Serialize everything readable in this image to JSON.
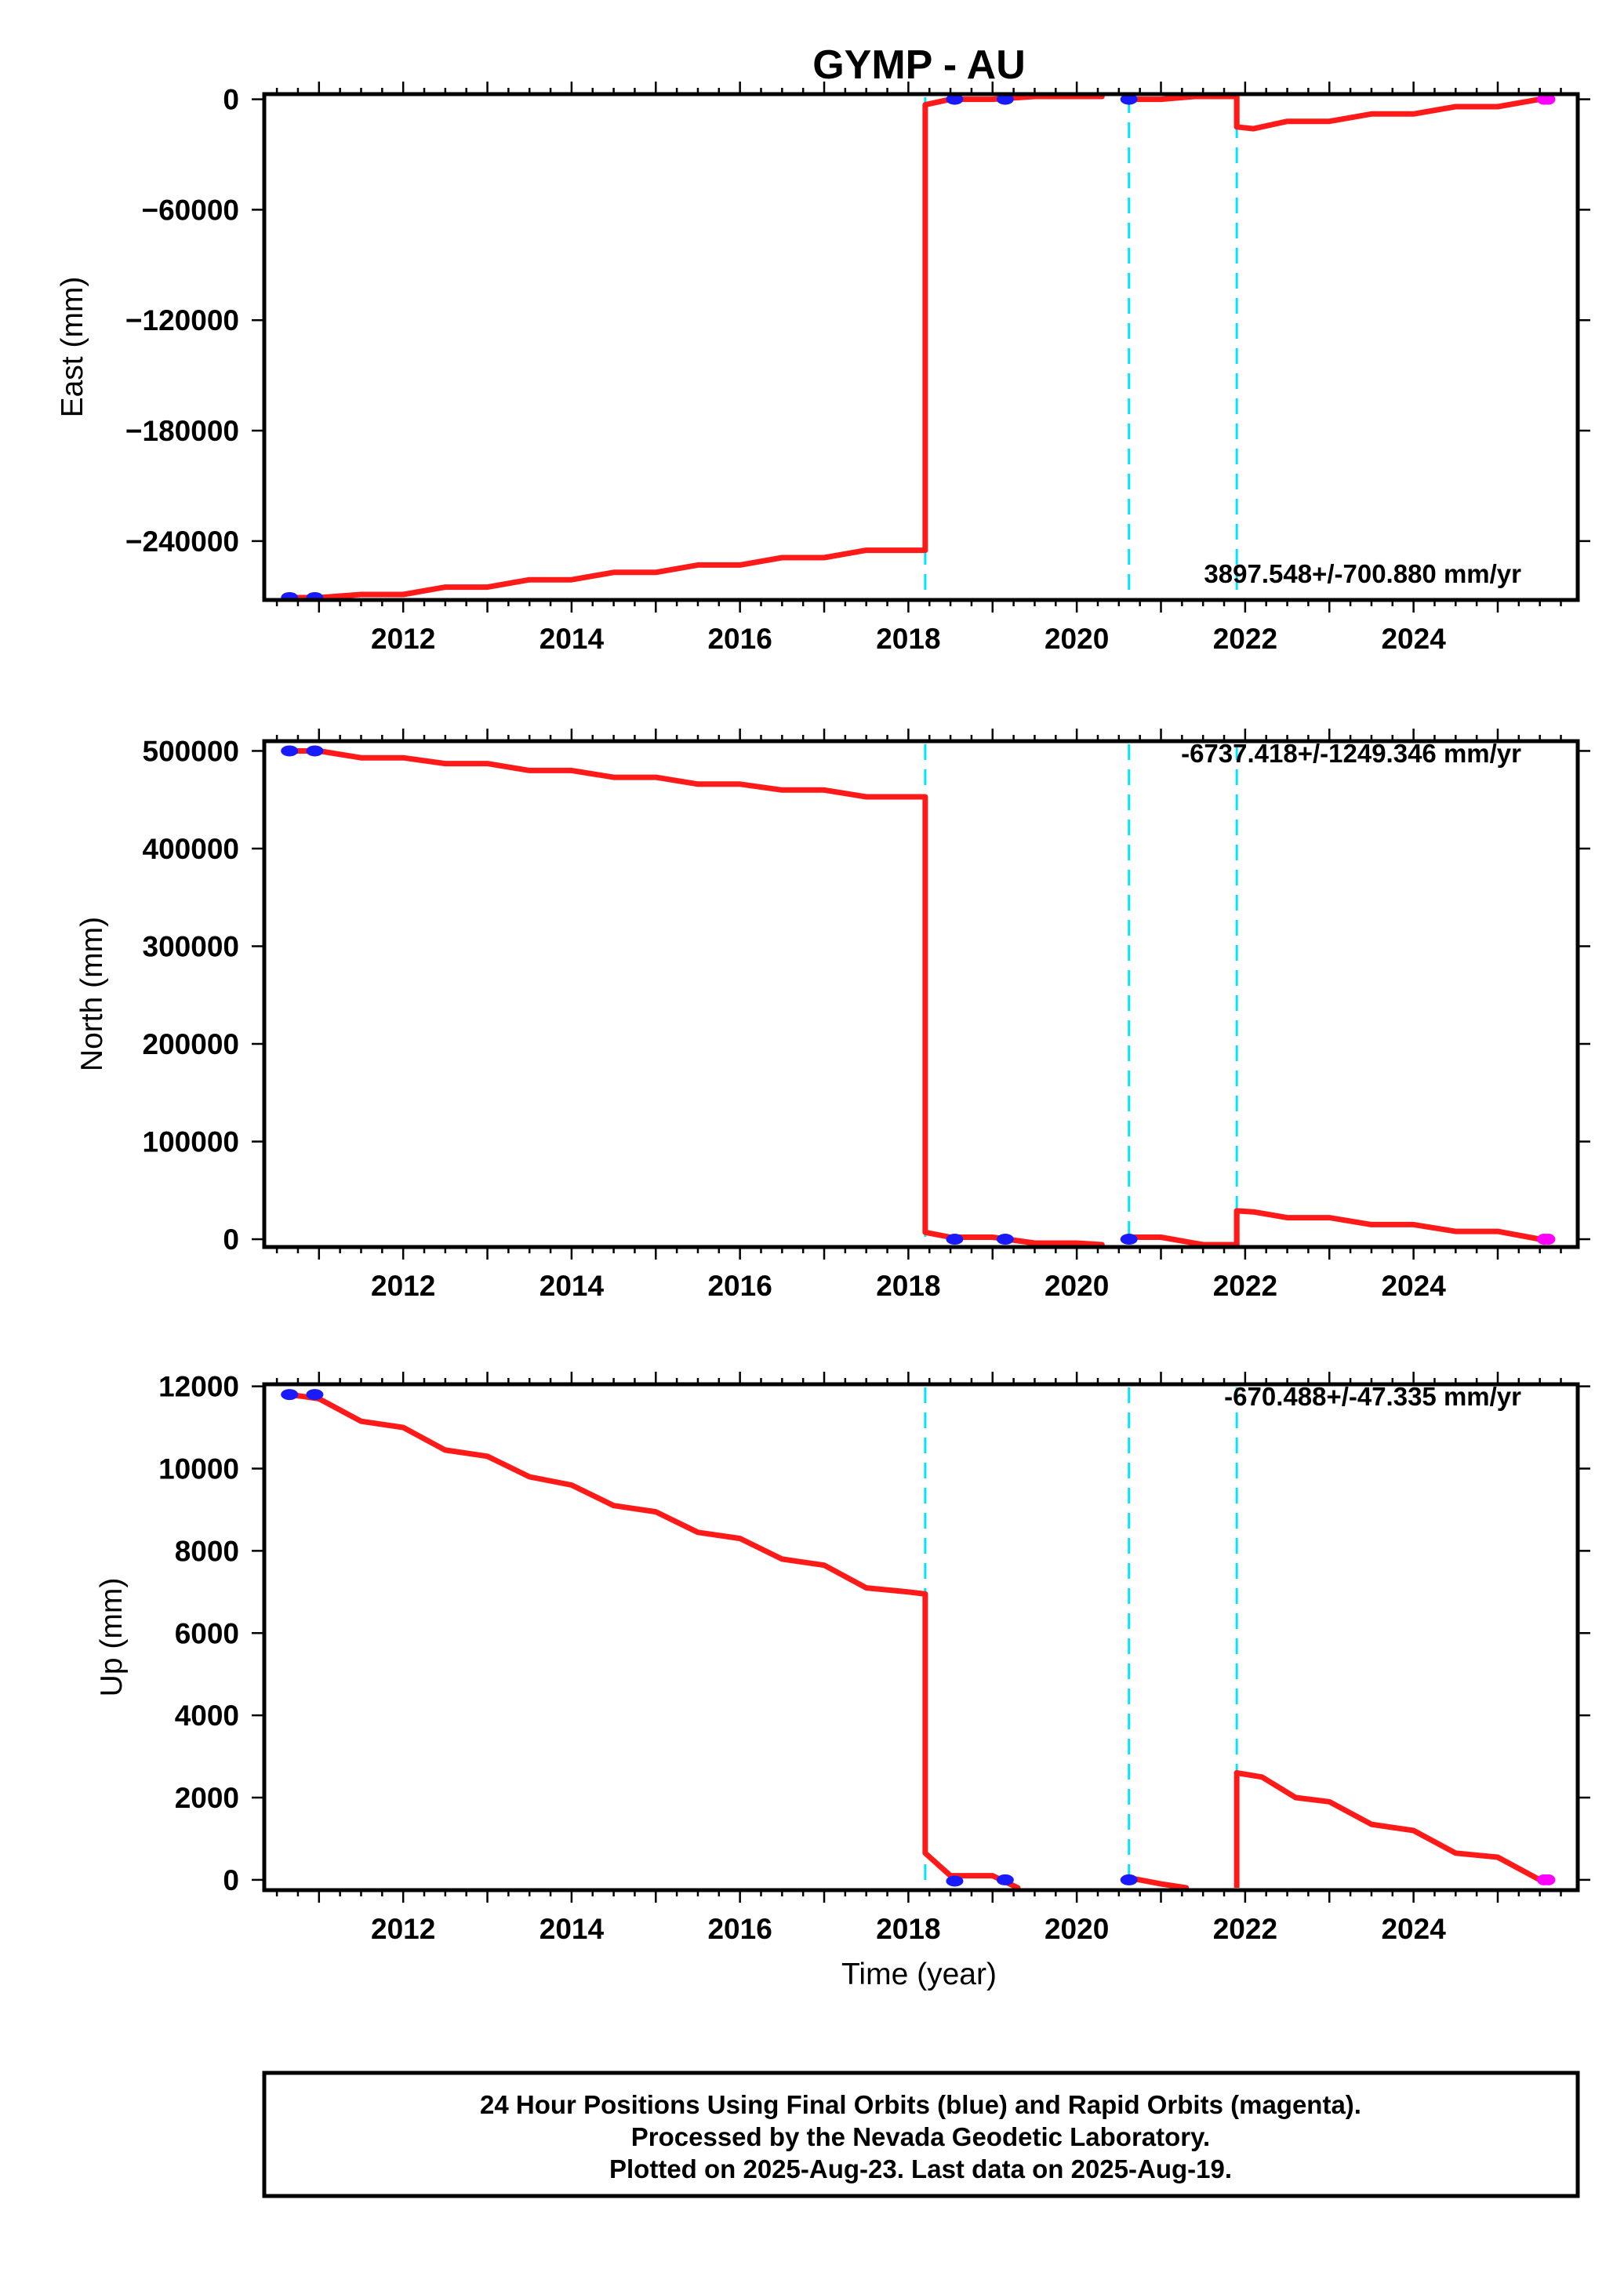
{
  "colors": {
    "model": "#ff1a1a",
    "final_orbits": "#1a1aff",
    "rapid_orbits": "#ff00ff",
    "offsets": "#00e5ff",
    "frame": "#000000"
  },
  "chart_data": [
    {
      "type": "line",
      "title": "GYMP - AU",
      "ylabel": "East (mm)",
      "xlabel": "",
      "xlim": [
        2010.35,
        2025.95
      ],
      "ylim": [
        -272000,
        2800
      ],
      "x_ticks": [
        2012,
        2014,
        2016,
        2018,
        2020,
        2022,
        2024
      ],
      "x_tick_labels": [
        "2012",
        "2014",
        "2016",
        "2018",
        "2020",
        "2022",
        "2024"
      ],
      "y_ticks": [
        0,
        -60000,
        -120000,
        -180000,
        -240000
      ],
      "y_tick_labels": [
        "0",
        "−60000",
        "−120000",
        "−180000",
        "−240000"
      ],
      "rate": "3897.548+/-700.880 mm/yr",
      "offsets": [
        2018.2,
        2020.62,
        2021.9
      ],
      "model": [
        [
          [
            2010.65,
            -272000
          ],
          [
            2011.0,
            -272000
          ],
          [
            2011.5,
            -269000
          ],
          [
            2012.0,
            -269000
          ],
          [
            2012.5,
            -265000
          ],
          [
            2013.0,
            -265000
          ],
          [
            2013.5,
            -261000
          ],
          [
            2014.0,
            -261000
          ],
          [
            2014.5,
            -257000
          ],
          [
            2015.0,
            -257000
          ],
          [
            2015.5,
            -253000
          ],
          [
            2016.0,
            -253000
          ],
          [
            2016.5,
            -249000
          ],
          [
            2017.0,
            -249000
          ],
          [
            2017.5,
            -245000
          ],
          [
            2018.0,
            -245000
          ],
          [
            2018.2,
            -245000
          ]
        ],
        [
          [
            2018.2,
            -3000
          ],
          [
            2018.5,
            0
          ],
          [
            2019.0,
            0
          ],
          [
            2019.5,
            2500
          ],
          [
            2020.0,
            3000
          ],
          [
            2020.3,
            4000
          ]
        ],
        [
          [
            2020.62,
            0
          ],
          [
            2021.0,
            0
          ],
          [
            2021.4,
            3000
          ],
          [
            2021.9,
            3000
          ]
        ],
        [
          [
            2021.9,
            -15000
          ],
          [
            2022.1,
            -16000
          ],
          [
            2022.5,
            -12000
          ],
          [
            2023.0,
            -12000
          ],
          [
            2023.5,
            -8000
          ],
          [
            2024.0,
            -8000
          ],
          [
            2024.5,
            -4000
          ],
          [
            2025.0,
            -4000
          ],
          [
            2025.5,
            0
          ],
          [
            2025.6,
            0
          ]
        ]
      ],
      "final_orbits": [
        [
          2010.65,
          -272000
        ],
        [
          2010.95,
          -272000
        ],
        [
          2018.55,
          0
        ],
        [
          2019.15,
          0
        ],
        [
          2020.62,
          0
        ]
      ],
      "rapid_orbits": [
        [
          2025.55,
          0
        ],
        [
          2025.6,
          0
        ]
      ]
    },
    {
      "type": "line",
      "title": "",
      "ylabel": "North (mm)",
      "xlabel": "",
      "xlim": [
        2010.35,
        2025.95
      ],
      "ylim": [
        -8000,
        510000
      ],
      "x_ticks": [
        2012,
        2014,
        2016,
        2018,
        2020,
        2022,
        2024
      ],
      "x_tick_labels": [
        "2012",
        "2014",
        "2016",
        "2018",
        "2020",
        "2022",
        "2024"
      ],
      "y_ticks": [
        0,
        100000,
        200000,
        300000,
        400000,
        500000
      ],
      "y_tick_labels": [
        "0",
        "100000",
        "200000",
        "300000",
        "400000",
        "500000"
      ],
      "rate": "-6737.418+/-1249.346 mm/yr",
      "offsets": [
        2018.2,
        2020.62,
        2021.9
      ],
      "model": [
        [
          [
            2010.65,
            500000
          ],
          [
            2011.0,
            500000
          ],
          [
            2011.5,
            493000
          ],
          [
            2012.0,
            493000
          ],
          [
            2012.5,
            487000
          ],
          [
            2013.0,
            487000
          ],
          [
            2013.5,
            480000
          ],
          [
            2014.0,
            480000
          ],
          [
            2014.5,
            473000
          ],
          [
            2015.0,
            473000
          ],
          [
            2015.5,
            466000
          ],
          [
            2016.0,
            466000
          ],
          [
            2016.5,
            460000
          ],
          [
            2017.0,
            460000
          ],
          [
            2017.5,
            453000
          ],
          [
            2018.0,
            453000
          ],
          [
            2018.2,
            453000
          ]
        ],
        [
          [
            2018.2,
            7000
          ],
          [
            2018.5,
            2000
          ],
          [
            2019.0,
            2000
          ],
          [
            2019.5,
            -4000
          ],
          [
            2020.0,
            -4000
          ],
          [
            2020.3,
            -8000
          ]
        ],
        [
          [
            2020.62,
            2000
          ],
          [
            2021.0,
            2000
          ],
          [
            2021.5,
            -6000
          ],
          [
            2021.9,
            -6000
          ]
        ],
        [
          [
            2021.9,
            29000
          ],
          [
            2022.1,
            28000
          ],
          [
            2022.5,
            22000
          ],
          [
            2023.0,
            22000
          ],
          [
            2023.5,
            15000
          ],
          [
            2024.0,
            15000
          ],
          [
            2024.5,
            8000
          ],
          [
            2025.0,
            8000
          ],
          [
            2025.5,
            0
          ],
          [
            2025.6,
            0
          ]
        ]
      ],
      "final_orbits": [
        [
          2010.65,
          500000
        ],
        [
          2010.95,
          500000
        ],
        [
          2018.55,
          0
        ],
        [
          2019.15,
          0
        ],
        [
          2020.62,
          0
        ]
      ],
      "rapid_orbits": [
        [
          2025.55,
          0
        ],
        [
          2025.6,
          0
        ]
      ]
    },
    {
      "type": "line",
      "title": "",
      "ylabel": "Up (mm)",
      "xlabel": "Time (year)",
      "xlim": [
        2010.35,
        2025.95
      ],
      "ylim": [
        -250,
        12050
      ],
      "x_ticks": [
        2012,
        2014,
        2016,
        2018,
        2020,
        2022,
        2024
      ],
      "x_tick_labels": [
        "2012",
        "2014",
        "2016",
        "2018",
        "2020",
        "2022",
        "2024"
      ],
      "y_ticks": [
        0,
        2000,
        4000,
        6000,
        8000,
        10000,
        12000
      ],
      "y_tick_labels": [
        "0",
        "2000",
        "4000",
        "6000",
        "8000",
        "10000",
        "12000"
      ],
      "rate": "-670.488+/-47.335 mm/yr",
      "offsets": [
        2018.2,
        2020.62,
        2021.9
      ],
      "model": [
        [
          [
            2010.65,
            11800
          ],
          [
            2011.0,
            11700
          ],
          [
            2011.5,
            11150
          ],
          [
            2012.0,
            11000
          ],
          [
            2012.5,
            10450
          ],
          [
            2013.0,
            10300
          ],
          [
            2013.5,
            9800
          ],
          [
            2014.0,
            9600
          ],
          [
            2014.5,
            9100
          ],
          [
            2015.0,
            8950
          ],
          [
            2015.5,
            8450
          ],
          [
            2016.0,
            8300
          ],
          [
            2016.5,
            7800
          ],
          [
            2017.0,
            7650
          ],
          [
            2017.5,
            7100
          ],
          [
            2018.0,
            7000
          ],
          [
            2018.2,
            6950
          ]
        ],
        [
          [
            2018.2,
            650
          ],
          [
            2018.5,
            100
          ],
          [
            2019.0,
            100
          ],
          [
            2019.3,
            -200
          ]
        ],
        [
          [
            2020.62,
            50
          ],
          [
            2021.0,
            -100
          ],
          [
            2021.3,
            -250
          ]
        ],
        [
          [
            2021.9,
            2600
          ],
          [
            2022.2,
            2500
          ],
          [
            2022.6,
            2000
          ],
          [
            2023.0,
            1900
          ],
          [
            2023.5,
            1350
          ],
          [
            2024.0,
            1200
          ],
          [
            2024.5,
            650
          ],
          [
            2025.0,
            550
          ],
          [
            2025.5,
            0
          ],
          [
            2025.6,
            0
          ]
        ]
      ],
      "final_orbits": [
        [
          2010.65,
          11800
        ],
        [
          2010.95,
          11800
        ],
        [
          2018.55,
          -30
        ],
        [
          2019.15,
          0
        ],
        [
          2020.62,
          0
        ]
      ],
      "rapid_orbits": [
        [
          2025.55,
          0
        ],
        [
          2025.6,
          0
        ]
      ]
    }
  ],
  "footer": {
    "line1": "24 Hour Positions Using Final Orbits (blue) and Rapid Orbits (magenta).",
    "line2": "Processed by the Nevada Geodetic Laboratory.",
    "line3": "Plotted on 2025-Aug-23. Last data on 2025-Aug-19."
  }
}
